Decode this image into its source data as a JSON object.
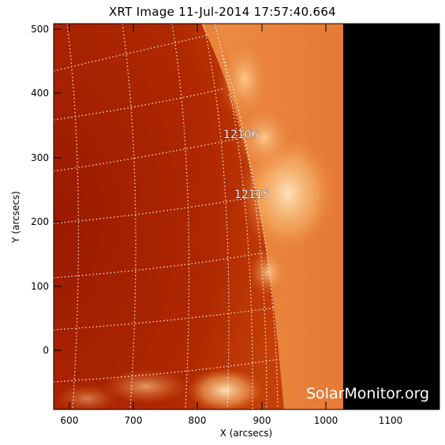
{
  "title": "XRT Image 11-Jul-2014 17:57:40.664",
  "x_axis": {
    "label": "X (arcsecs)",
    "ticks": [
      "600",
      "700",
      "800",
      "900",
      "1000",
      "1100"
    ],
    "range": [
      575,
      1175
    ]
  },
  "y_axis": {
    "label": "Y (arcsecs)",
    "ticks": [
      "0",
      "100",
      "200",
      "300",
      "400",
      "500"
    ],
    "range": [
      -90,
      510
    ]
  },
  "active_regions": [
    {
      "id": "12106",
      "x": 915,
      "y": 345
    },
    {
      "id": "12115",
      "x": 932,
      "y": 245
    }
  ],
  "watermark": "SolarMonitor.org",
  "colors": {
    "disk_dark": "#a11e00",
    "disk_mid": "#c23a08",
    "limb_bright": "#f7b064",
    "off_limb_glow": "#ffe1b4",
    "no_data": "#000000",
    "grid": "#ffffff"
  }
}
